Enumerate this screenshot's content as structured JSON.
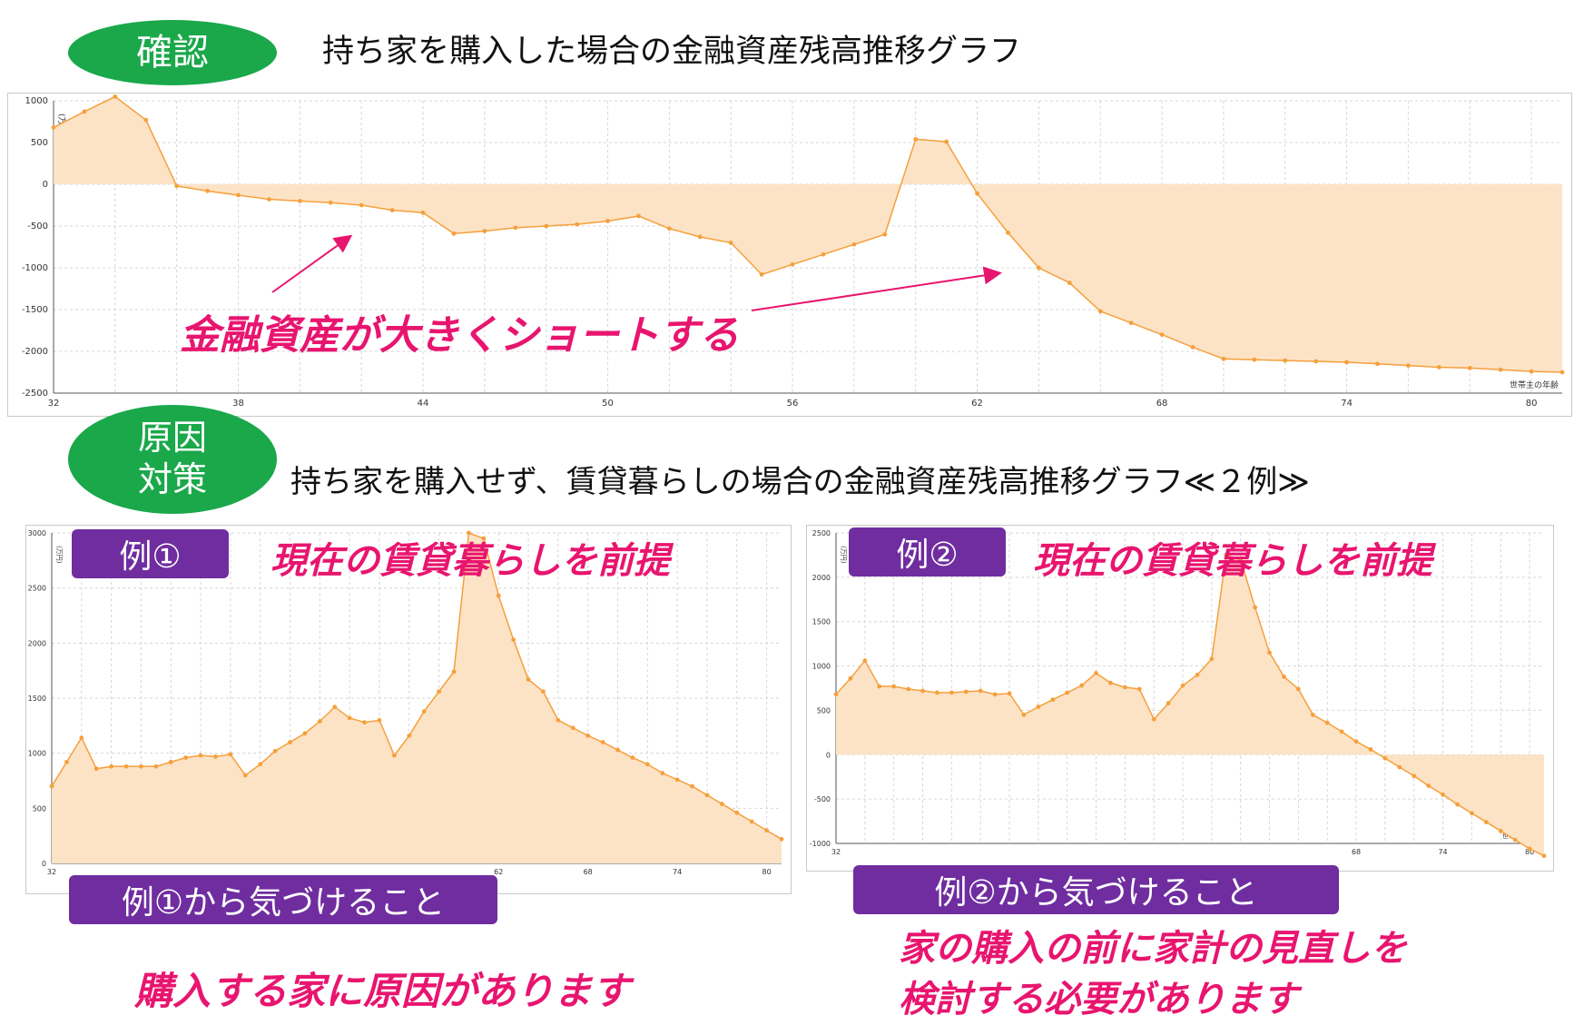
{
  "top": {
    "badge": "確認",
    "title": "持ち家を購入した場合の金融資産残高推移グラフ",
    "annotation": "金融資産が大きくショートする"
  },
  "mid": {
    "badge_line1": "原因",
    "badge_line2": "対策",
    "title": "持ち家を購入せず、賃貸暮らしの場合の金融資産残高推移グラフ≪２例≫"
  },
  "example1": {
    "label": "例①",
    "note": "現在の賃貸暮らしを前提",
    "insight_label": "例①から気づけること",
    "insight": "購入する家に原因があります"
  },
  "example2": {
    "label": "例②",
    "note": "現在の賃貸暮らしを前提",
    "insight_label": "例②から気づけること",
    "insight_line1": "家の購入の前に家計の見直しを",
    "insight_line2": "検討する必要があります"
  },
  "colors": {
    "oval": "#1aa84a",
    "label_box": "#6f2da0",
    "accent": "#e8156f",
    "series_line": "#f5a03c",
    "series_fill": "#fde3c6"
  },
  "chart_data": [
    {
      "type": "area",
      "title": "",
      "xlabel": "世帯主の年齢",
      "ylabel": "(万円)",
      "xlim": [
        32,
        81
      ],
      "ylim": [
        -2500,
        1000
      ],
      "xticks": [
        32,
        38,
        44,
        50,
        56,
        62,
        68,
        74,
        80
      ],
      "yticks": [
        1000,
        500,
        0,
        -500,
        -1000,
        -1500,
        -2000,
        -2500
      ],
      "x": [
        32,
        33,
        34,
        35,
        36,
        37,
        38,
        39,
        40,
        41,
        42,
        43,
        44,
        45,
        46,
        47,
        48,
        49,
        50,
        51,
        52,
        53,
        54,
        55,
        56,
        57,
        58,
        59,
        60,
        61,
        62,
        63,
        64,
        65,
        66,
        67,
        68,
        69,
        70,
        71,
        72,
        73,
        74,
        75,
        76,
        77,
        78,
        79,
        80,
        81
      ],
      "values": [
        680,
        870,
        1050,
        770,
        -20,
        -80,
        -130,
        -180,
        -200,
        -220,
        -250,
        -310,
        -340,
        -590,
        -560,
        -520,
        -500,
        -480,
        -440,
        -380,
        -530,
        -630,
        -700,
        -1080,
        -960,
        -840,
        -720,
        -600,
        540,
        510,
        -110,
        -580,
        -1000,
        -1180,
        -1520,
        -1660,
        -1800,
        -1950,
        -2090,
        -2100,
        -2110,
        -2120,
        -2130,
        -2150,
        -2170,
        -2190,
        -2200,
        -2220,
        -2240,
        -2250
      ]
    },
    {
      "type": "area",
      "title": "",
      "xlabel": "世帯主の年齢",
      "ylabel": "(万円)",
      "xlim": [
        32,
        81
      ],
      "ylim": [
        0,
        3000
      ],
      "xticks": [
        32,
        62,
        68,
        74,
        80
      ],
      "yticks": [
        3000,
        2500,
        2000,
        1500,
        1000,
        500,
        0
      ],
      "x": [
        32,
        33,
        34,
        35,
        36,
        37,
        38,
        39,
        40,
        41,
        42,
        43,
        44,
        45,
        46,
        47,
        48,
        49,
        50,
        51,
        52,
        53,
        54,
        55,
        56,
        57,
        58,
        59,
        60,
        61,
        62,
        63,
        64,
        65,
        66,
        67,
        68,
        69,
        70,
        71,
        72,
        73,
        74,
        75,
        76,
        77,
        78,
        79,
        80,
        81
      ],
      "values": [
        700,
        920,
        1140,
        860,
        880,
        880,
        880,
        880,
        920,
        960,
        980,
        970,
        990,
        800,
        900,
        1020,
        1100,
        1180,
        1290,
        1420,
        1320,
        1280,
        1300,
        980,
        1160,
        1380,
        1560,
        1740,
        3000,
        2950,
        2430,
        2030,
        1670,
        1560,
        1300,
        1230,
        1160,
        1100,
        1030,
        960,
        900,
        820,
        760,
        700,
        620,
        540,
        460,
        380,
        300,
        220
      ]
    },
    {
      "type": "area",
      "title": "",
      "xlabel": "世帯主の年齢",
      "ylabel": "(万円)",
      "xlim": [
        32,
        81
      ],
      "ylim": [
        -1000,
        2500
      ],
      "xticks": [
        32,
        68,
        74,
        80
      ],
      "yticks": [
        2500,
        2000,
        1500,
        1000,
        500,
        0,
        -500,
        -1000
      ],
      "x": [
        32,
        33,
        34,
        35,
        36,
        37,
        38,
        39,
        40,
        41,
        42,
        43,
        44,
        45,
        46,
        47,
        48,
        49,
        50,
        51,
        52,
        53,
        54,
        55,
        56,
        57,
        58,
        59,
        60,
        61,
        62,
        63,
        64,
        65,
        66,
        67,
        68,
        69,
        70,
        71,
        72,
        73,
        74,
        75,
        76,
        77,
        78,
        79,
        80,
        81
      ],
      "values": [
        680,
        860,
        1060,
        770,
        770,
        740,
        720,
        700,
        700,
        710,
        720,
        680,
        690,
        450,
        540,
        620,
        700,
        780,
        920,
        810,
        760,
        740,
        400,
        580,
        780,
        900,
        1080,
        2250,
        2200,
        1660,
        1150,
        880,
        740,
        450,
        360,
        260,
        150,
        60,
        -40,
        -140,
        -240,
        -350,
        -450,
        -560,
        -660,
        -760,
        -860,
        -960,
        -1060,
        -1140
      ]
    }
  ]
}
